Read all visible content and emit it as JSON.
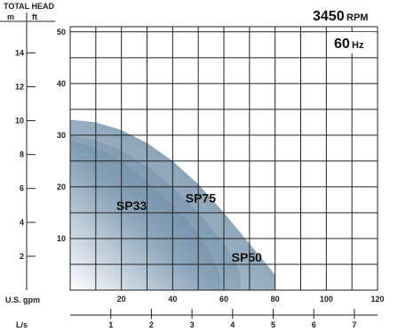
{
  "chart_data": {
    "type": "area",
    "speed": {
      "value": "3450",
      "unit": "RPM"
    },
    "frequency": {
      "value": "60",
      "unit": "Hz"
    },
    "y_title": "TOTAL HEAD",
    "y_unit_m": "m",
    "y_unit_ft": "ft",
    "x_primary_label": "U.S. gpm",
    "x_secondary_label": "L/s",
    "x_gpm_ticks": [
      "20",
      "40",
      "60",
      "80",
      "100",
      "120"
    ],
    "x_ls_ticks": [
      "1",
      "2",
      "3",
      "4",
      "5",
      "6",
      "7"
    ],
    "y_ft_ticks": [
      "10",
      "20",
      "30",
      "40",
      "50"
    ],
    "y_m_ticks": [
      "2",
      "4",
      "6",
      "8",
      "10",
      "12",
      "14"
    ],
    "xlim": [
      0,
      120
    ],
    "ylim_ft": [
      0,
      51
    ],
    "grid": true,
    "series": [
      {
        "name": "SP75",
        "color": "#6f8fa9",
        "points": [
          [
            0,
            33
          ],
          [
            10,
            32.5
          ],
          [
            20,
            31
          ],
          [
            30,
            28.5
          ],
          [
            40,
            25
          ],
          [
            50,
            20.5
          ],
          [
            60,
            15
          ],
          [
            70,
            9
          ],
          [
            80,
            3
          ],
          [
            80,
            0
          ]
        ]
      },
      {
        "name": "SP50",
        "color": "#5a7b96",
        "points": [
          [
            0,
            30
          ],
          [
            10,
            29
          ],
          [
            20,
            27
          ],
          [
            30,
            24
          ],
          [
            40,
            20
          ],
          [
            50,
            15
          ],
          [
            60,
            9
          ],
          [
            65,
            5
          ],
          [
            66.5,
            3
          ],
          [
            66.5,
            0
          ]
        ]
      },
      {
        "name": "SP33",
        "color": "#4a6b86",
        "points": [
          [
            0,
            29
          ],
          [
            10,
            27.5
          ],
          [
            20,
            25
          ],
          [
            30,
            21
          ],
          [
            40,
            16.5
          ],
          [
            50,
            11
          ],
          [
            55,
            7
          ],
          [
            58.5,
            3
          ],
          [
            59,
            0
          ]
        ]
      }
    ]
  }
}
